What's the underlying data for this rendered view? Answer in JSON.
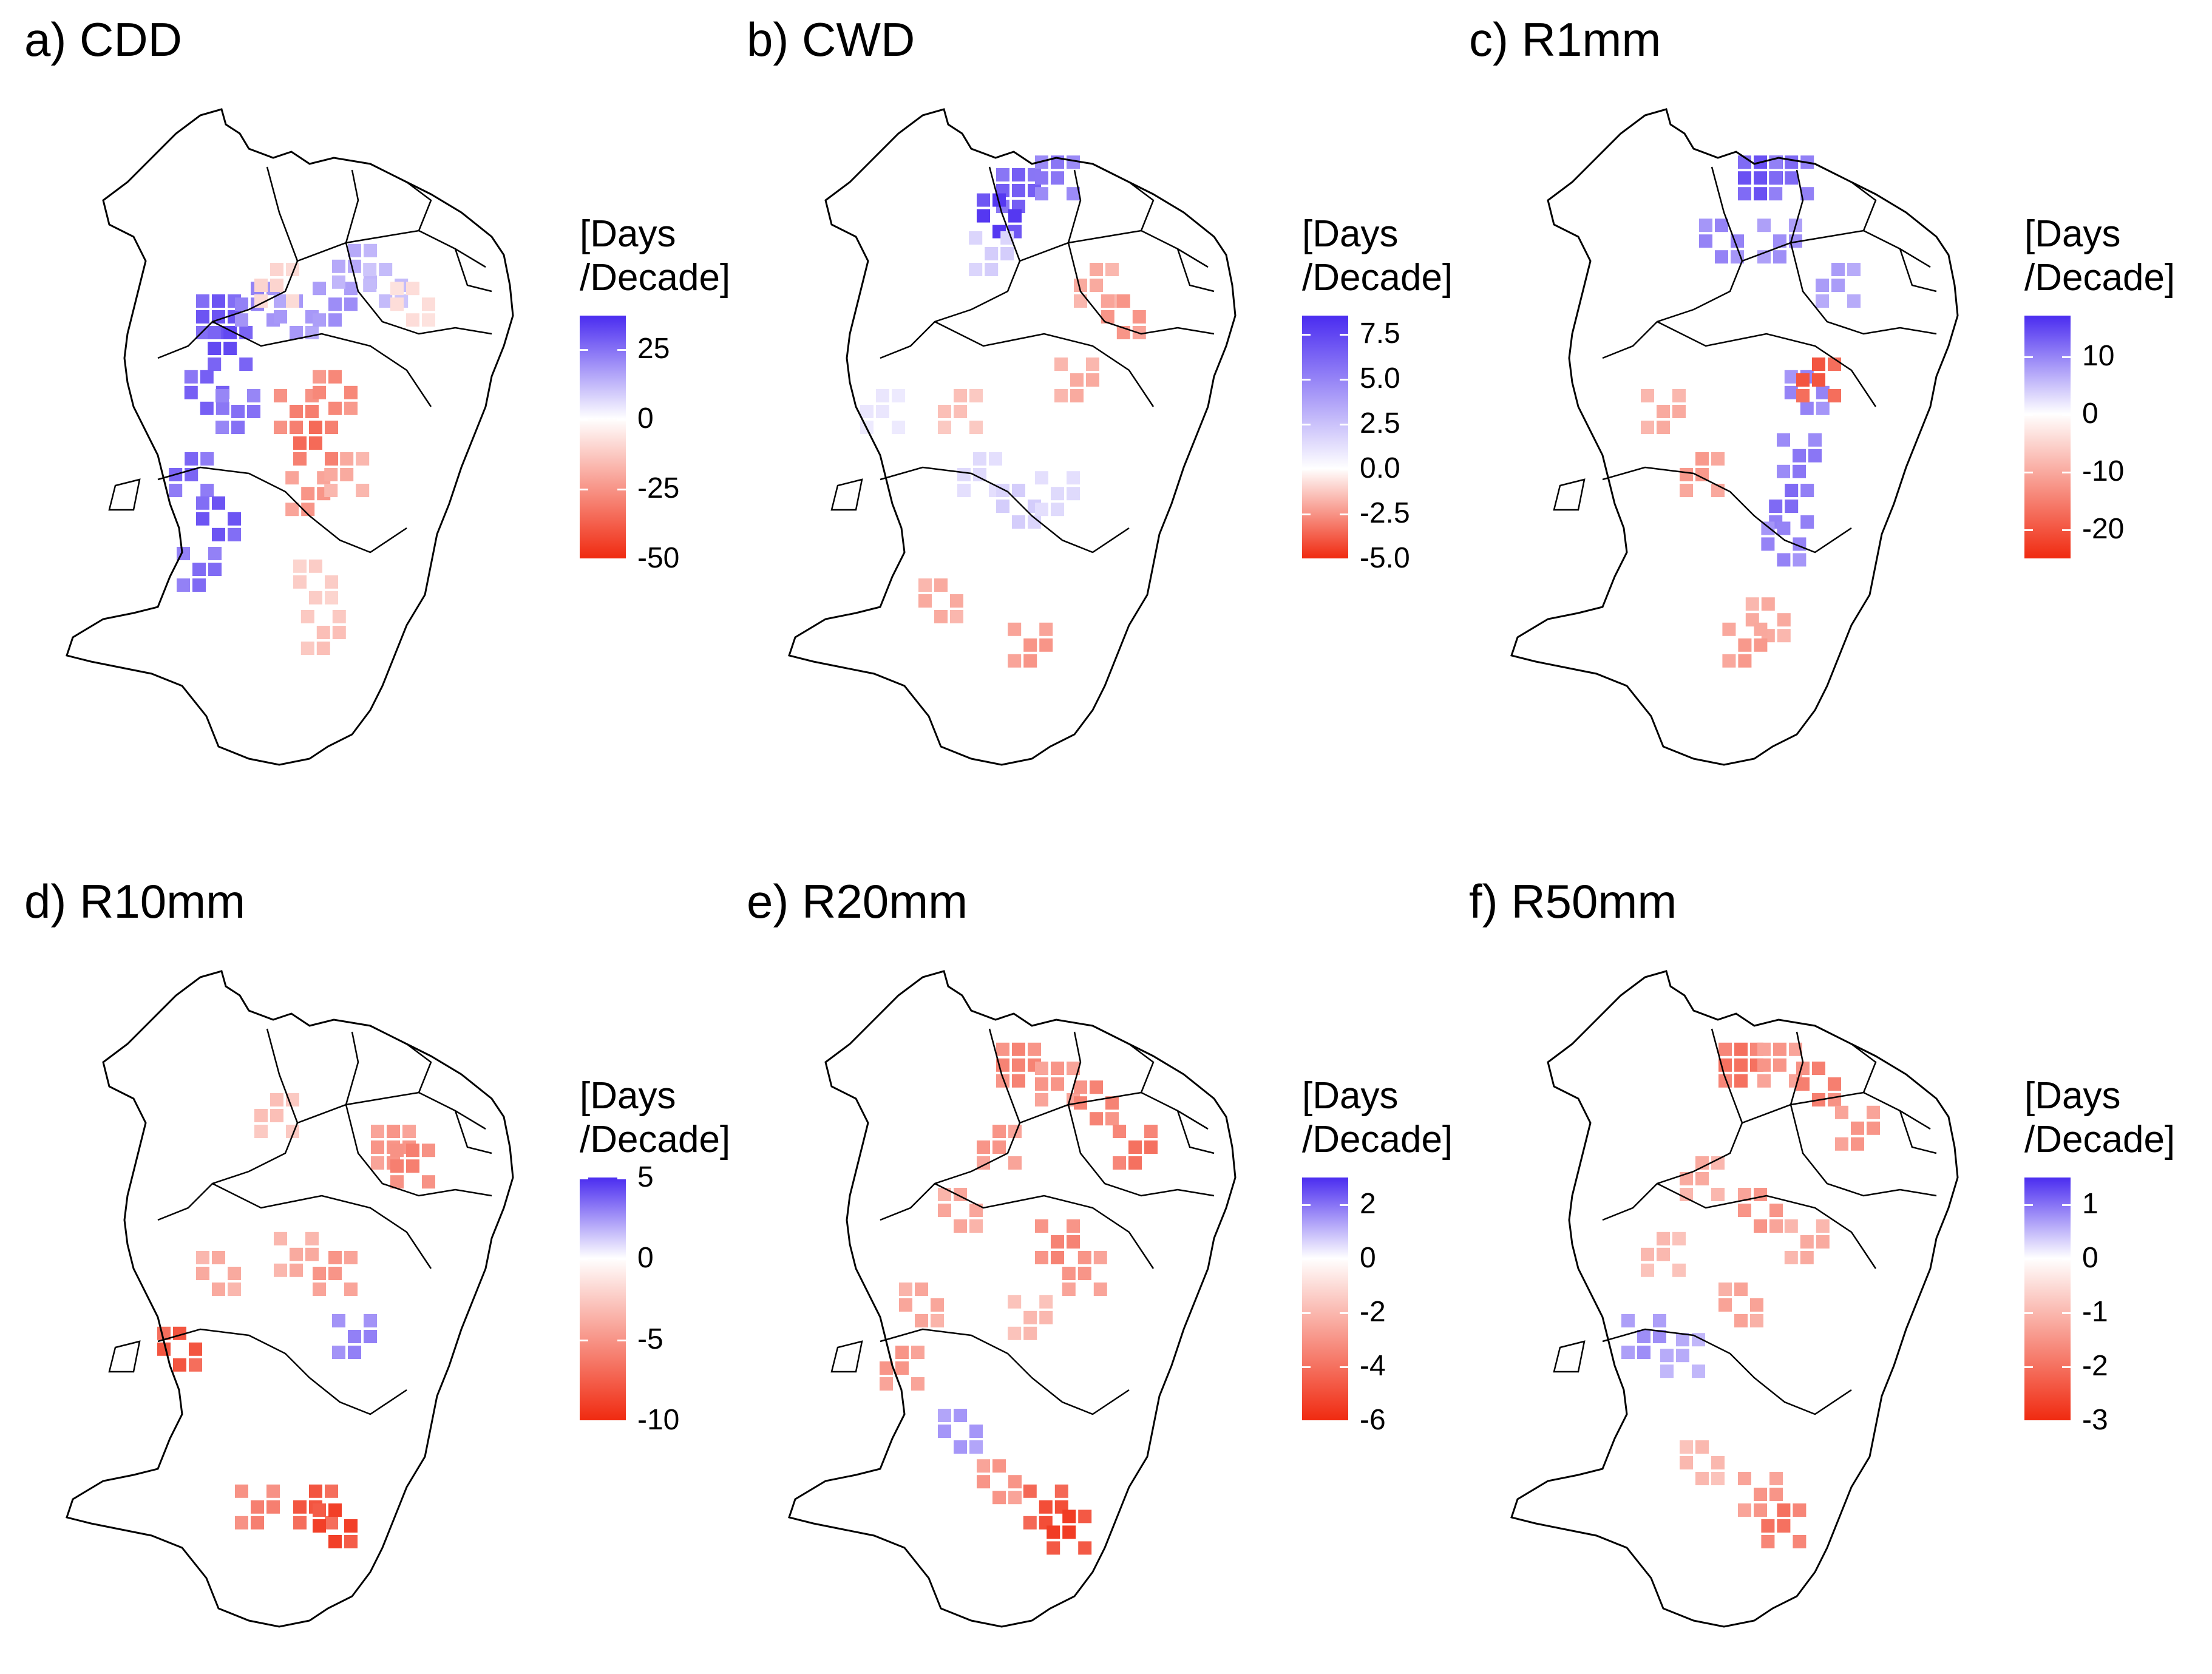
{
  "figure": {
    "unit_label_line1": "[Days",
    "unit_label_line2": "/Decade]",
    "colors": {
      "positive": "#4a2cf0",
      "negative": "#f02a10",
      "neutral": "#ffffff",
      "border": "#000000"
    }
  },
  "chart_data": [
    {
      "type": "heatmap",
      "id": "cdd",
      "title": "a) CDD",
      "legend_title": "[Days /Decade]",
      "colorbar": {
        "min": -50,
        "max": 37,
        "ticks": [
          "25",
          "0",
          "-25",
          "-50"
        ],
        "tick_values": [
          25,
          0,
          -25,
          -50
        ]
      },
      "dominant_sign": "mixed",
      "cells": [
        {
          "lon": 0.25,
          "lat": 0.3,
          "v": 30
        },
        {
          "lon": 0.28,
          "lat": 0.35,
          "v": 32
        },
        {
          "lon": 0.22,
          "lat": 0.42,
          "v": 28
        },
        {
          "lon": 0.3,
          "lat": 0.45,
          "v": 25
        },
        {
          "lon": 0.18,
          "lat": 0.55,
          "v": 27
        },
        {
          "lon": 0.25,
          "lat": 0.62,
          "v": 30
        },
        {
          "lon": 0.2,
          "lat": 0.7,
          "v": 26
        },
        {
          "lon": 0.35,
          "lat": 0.28,
          "v": 22
        },
        {
          "lon": 0.45,
          "lat": 0.3,
          "v": 18
        },
        {
          "lon": 0.55,
          "lat": 0.28,
          "v": 20
        },
        {
          "lon": 0.6,
          "lat": 0.22,
          "v": 15
        },
        {
          "lon": 0.68,
          "lat": 0.25,
          "v": 12
        },
        {
          "lon": 0.45,
          "lat": 0.45,
          "v": -30
        },
        {
          "lon": 0.5,
          "lat": 0.5,
          "v": -35
        },
        {
          "lon": 0.55,
          "lat": 0.42,
          "v": -28
        },
        {
          "lon": 0.48,
          "lat": 0.58,
          "v": -25
        },
        {
          "lon": 0.58,
          "lat": 0.55,
          "v": -20
        },
        {
          "lon": 0.5,
          "lat": 0.72,
          "v": -12
        },
        {
          "lon": 0.52,
          "lat": 0.8,
          "v": -15
        },
        {
          "lon": 0.4,
          "lat": 0.25,
          "v": -10
        },
        {
          "lon": 0.75,
          "lat": 0.28,
          "v": -8
        }
      ]
    },
    {
      "type": "heatmap",
      "id": "cwd",
      "title": "b) CWD",
      "legend_title": "[Days /Decade]",
      "colorbar": {
        "min": -5.0,
        "max": 8.5,
        "ticks": [
          "7.5",
          "5.0",
          "2.5",
          "0.0",
          "-2.5",
          "-5.0"
        ],
        "tick_values": [
          7.5,
          5.0,
          2.5,
          0.0,
          -2.5,
          -5.0
        ]
      },
      "dominant_sign": "mixed",
      "cells": [
        {
          "lon": 0.45,
          "lat": 0.1,
          "v": 6.5
        },
        {
          "lon": 0.55,
          "lat": 0.08,
          "v": 5.5
        },
        {
          "lon": 0.4,
          "lat": 0.14,
          "v": 8.0
        },
        {
          "lon": 0.38,
          "lat": 0.2,
          "v": 2.0
        },
        {
          "lon": 0.35,
          "lat": 0.55,
          "v": 1.5
        },
        {
          "lon": 0.45,
          "lat": 0.6,
          "v": 2.0
        },
        {
          "lon": 0.55,
          "lat": 0.58,
          "v": 1.5
        },
        {
          "lon": 0.65,
          "lat": 0.25,
          "v": -2.0
        },
        {
          "lon": 0.72,
          "lat": 0.3,
          "v": -2.5
        },
        {
          "lon": 0.6,
          "lat": 0.4,
          "v": -2.0
        },
        {
          "lon": 0.3,
          "lat": 0.45,
          "v": -1.5
        },
        {
          "lon": 0.25,
          "lat": 0.75,
          "v": -2.0
        },
        {
          "lon": 0.48,
          "lat": 0.82,
          "v": -2.5
        },
        {
          "lon": 0.1,
          "lat": 0.45,
          "v": 1.0
        }
      ]
    },
    {
      "type": "heatmap",
      "id": "r1mm",
      "title": "c) R1mm",
      "legend_title": "[Days /Decade]",
      "colorbar": {
        "min": -25,
        "max": 17,
        "ticks": [
          "10",
          "0",
          "-10",
          "-20"
        ],
        "tick_values": [
          10,
          0,
          -10,
          -20
        ]
      },
      "dominant_sign": "mixed",
      "cells": [
        {
          "lon": 0.5,
          "lat": 0.08,
          "v": 14
        },
        {
          "lon": 0.58,
          "lat": 0.08,
          "v": 12
        },
        {
          "lon": 0.4,
          "lat": 0.18,
          "v": 10
        },
        {
          "lon": 0.55,
          "lat": 0.18,
          "v": 9
        },
        {
          "lon": 0.7,
          "lat": 0.25,
          "v": 8
        },
        {
          "lon": 0.62,
          "lat": 0.42,
          "v": 10
        },
        {
          "lon": 0.6,
          "lat": 0.52,
          "v": 11
        },
        {
          "lon": 0.58,
          "lat": 0.6,
          "v": 12
        },
        {
          "lon": 0.56,
          "lat": 0.66,
          "v": 10
        },
        {
          "lon": 0.25,
          "lat": 0.45,
          "v": -10
        },
        {
          "lon": 0.35,
          "lat": 0.55,
          "v": -12
        },
        {
          "lon": 0.52,
          "lat": 0.78,
          "v": -10
        },
        {
          "lon": 0.46,
          "lat": 0.82,
          "v": -12
        },
        {
          "lon": 0.65,
          "lat": 0.4,
          "v": -20
        }
      ]
    },
    {
      "type": "heatmap",
      "id": "r10mm",
      "title": "d) R10mm",
      "legend_title": "[Days /Decade]",
      "colorbar": {
        "min": -10,
        "max": 5,
        "ticks": [
          "5",
          "0",
          "-5",
          "-10"
        ],
        "tick_values": [
          5,
          0,
          -5,
          -10
        ]
      },
      "dominant_sign": "negative",
      "cells": [
        {
          "lon": 0.7,
          "lat": 0.25,
          "v": -5
        },
        {
          "lon": 0.75,
          "lat": 0.28,
          "v": -6
        },
        {
          "lon": 0.25,
          "lat": 0.45,
          "v": -4
        },
        {
          "lon": 0.45,
          "lat": 0.42,
          "v": -4
        },
        {
          "lon": 0.55,
          "lat": 0.45,
          "v": -5
        },
        {
          "lon": 0.15,
          "lat": 0.57,
          "v": -8
        },
        {
          "lon": 0.6,
          "lat": 0.55,
          "v": 3
        },
        {
          "lon": 0.5,
          "lat": 0.82,
          "v": -8
        },
        {
          "lon": 0.55,
          "lat": 0.85,
          "v": -9
        },
        {
          "lon": 0.35,
          "lat": 0.82,
          "v": -6
        },
        {
          "lon": 0.4,
          "lat": 0.2,
          "v": -3
        }
      ]
    },
    {
      "type": "heatmap",
      "id": "r20mm",
      "title": "e) R20mm",
      "legend_title": "[Days /Decade]",
      "colorbar": {
        "min": -6,
        "max": 3,
        "ticks": [
          "2",
          "0",
          "-2",
          "-4",
          "-6"
        ],
        "tick_values": [
          2,
          0,
          -2,
          -4,
          -6
        ]
      },
      "dominant_sign": "negative",
      "cells": [
        {
          "lon": 0.45,
          "lat": 0.12,
          "v": -3.5
        },
        {
          "lon": 0.55,
          "lat": 0.15,
          "v": -3
        },
        {
          "lon": 0.65,
          "lat": 0.18,
          "v": -3.5
        },
        {
          "lon": 0.75,
          "lat": 0.25,
          "v": -4
        },
        {
          "lon": 0.4,
          "lat": 0.25,
          "v": -3
        },
        {
          "lon": 0.3,
          "lat": 0.35,
          "v": -2.5
        },
        {
          "lon": 0.55,
          "lat": 0.4,
          "v": -3.5
        },
        {
          "lon": 0.62,
          "lat": 0.45,
          "v": -3
        },
        {
          "lon": 0.2,
          "lat": 0.5,
          "v": -2.5
        },
        {
          "lon": 0.48,
          "lat": 0.52,
          "v": -2
        },
        {
          "lon": 0.15,
          "lat": 0.6,
          "v": -3
        },
        {
          "lon": 0.4,
          "lat": 0.78,
          "v": -3
        },
        {
          "lon": 0.52,
          "lat": 0.82,
          "v": -5
        },
        {
          "lon": 0.58,
          "lat": 0.86,
          "v": -5.5
        },
        {
          "lon": 0.3,
          "lat": 0.7,
          "v": 1.5
        }
      ]
    },
    {
      "type": "heatmap",
      "id": "r50mm",
      "title": "f) R50mm",
      "legend_title": "[Days /Decade]",
      "colorbar": {
        "min": -3,
        "max": 1.5,
        "ticks": [
          "1",
          "0",
          "-1",
          "-2",
          "-3"
        ],
        "tick_values": [
          1,
          0,
          -1,
          -2,
          -3
        ]
      },
      "dominant_sign": "negative",
      "cells": [
        {
          "lon": 0.45,
          "lat": 0.12,
          "v": -2
        },
        {
          "lon": 0.55,
          "lat": 0.12,
          "v": -1.5
        },
        {
          "lon": 0.65,
          "lat": 0.15,
          "v": -1.8
        },
        {
          "lon": 0.75,
          "lat": 0.22,
          "v": -1.5
        },
        {
          "lon": 0.35,
          "lat": 0.3,
          "v": -1.2
        },
        {
          "lon": 0.5,
          "lat": 0.35,
          "v": -1.5
        },
        {
          "lon": 0.62,
          "lat": 0.4,
          "v": -1.2
        },
        {
          "lon": 0.25,
          "lat": 0.42,
          "v": -1
        },
        {
          "lon": 0.45,
          "lat": 0.5,
          "v": -1.3
        },
        {
          "lon": 0.2,
          "lat": 0.55,
          "v": 0.8
        },
        {
          "lon": 0.3,
          "lat": 0.58,
          "v": 0.6
        },
        {
          "lon": 0.35,
          "lat": 0.75,
          "v": -1
        },
        {
          "lon": 0.5,
          "lat": 0.8,
          "v": -1.5
        },
        {
          "lon": 0.56,
          "lat": 0.85,
          "v": -2
        }
      ]
    }
  ]
}
